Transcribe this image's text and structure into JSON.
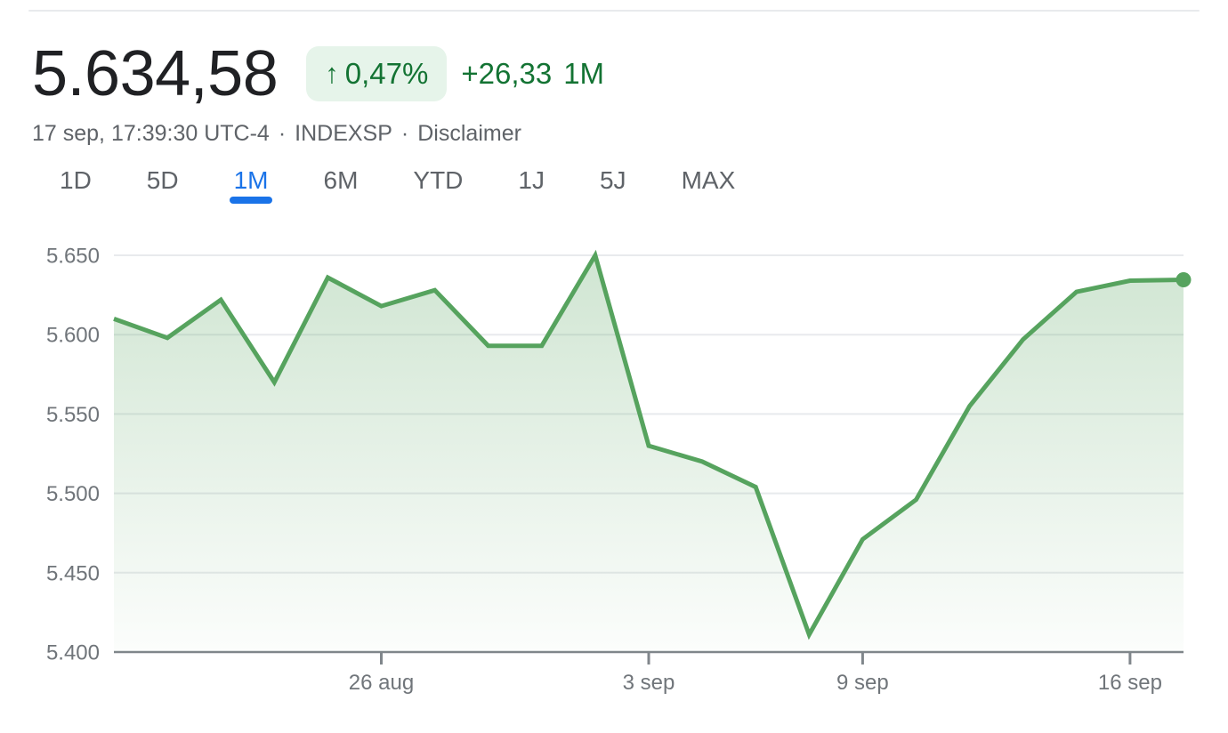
{
  "header": {
    "price": "5.634,58",
    "change_badge": {
      "arrow": "↑",
      "percent": "0,47%"
    },
    "change_text": {
      "absolute": "+26,33",
      "period": "1M"
    },
    "meta": {
      "timestamp": "17 sep, 17:39:30 UTC-4",
      "separator": "·",
      "symbol": "INDEXSP",
      "disclaimer_label": "Disclaimer"
    }
  },
  "tabs": [
    {
      "label": "1D",
      "active": false
    },
    {
      "label": "5D",
      "active": false
    },
    {
      "label": "1M",
      "active": true
    },
    {
      "label": "6M",
      "active": false
    },
    {
      "label": "YTD",
      "active": false
    },
    {
      "label": "1J",
      "active": false
    },
    {
      "label": "5J",
      "active": false
    },
    {
      "label": "MAX",
      "active": false
    }
  ],
  "colors": {
    "positive_green": "#137333",
    "badge_bg": "#e6f4ea",
    "line_green": "#56a35e",
    "active_tab_blue": "#1a73e8",
    "text_dark": "#202124",
    "text_gray": "#5f6368",
    "axis_label_gray": "#70757a",
    "gridline_gray": "#e8eaed",
    "axis_line_gray": "#80868b"
  },
  "chart_data": {
    "type": "area",
    "title": "",
    "x": [
      "19 aug",
      "20 aug",
      "21 aug",
      "22 aug",
      "25 aug",
      "26 aug",
      "27 aug",
      "28 aug",
      "29 aug",
      "2 sep",
      "3 sep",
      "4 sep",
      "5 sep",
      "8 sep",
      "9 sep",
      "10 sep",
      "11 sep",
      "12 sep",
      "15 sep",
      "16 sep",
      "17 sep"
    ],
    "values": [
      5610,
      5598,
      5622,
      5570,
      5636,
      5618,
      5628,
      5593,
      5593,
      5650,
      5530,
      5520,
      5504,
      5411,
      5471,
      5496,
      5555,
      5597,
      5627,
      5634,
      5634.58
    ],
    "ylim": [
      5400,
      5650
    ],
    "y_ticks": [
      {
        "value": 5650,
        "label": "5.650"
      },
      {
        "value": 5600,
        "label": "5.600"
      },
      {
        "value": 5550,
        "label": "5.550"
      },
      {
        "value": 5500,
        "label": "5.500"
      },
      {
        "value": 5450,
        "label": "5.450"
      },
      {
        "value": 5400,
        "label": "5.400"
      }
    ],
    "x_ticks": [
      {
        "index": 5,
        "label": "26 aug"
      },
      {
        "index": 10,
        "label": "3 sep"
      },
      {
        "index": 14,
        "label": "9 sep"
      },
      {
        "index": 19,
        "label": "16 sep"
      }
    ],
    "grid": "horizontal",
    "legend": "none",
    "end_dot": true
  }
}
